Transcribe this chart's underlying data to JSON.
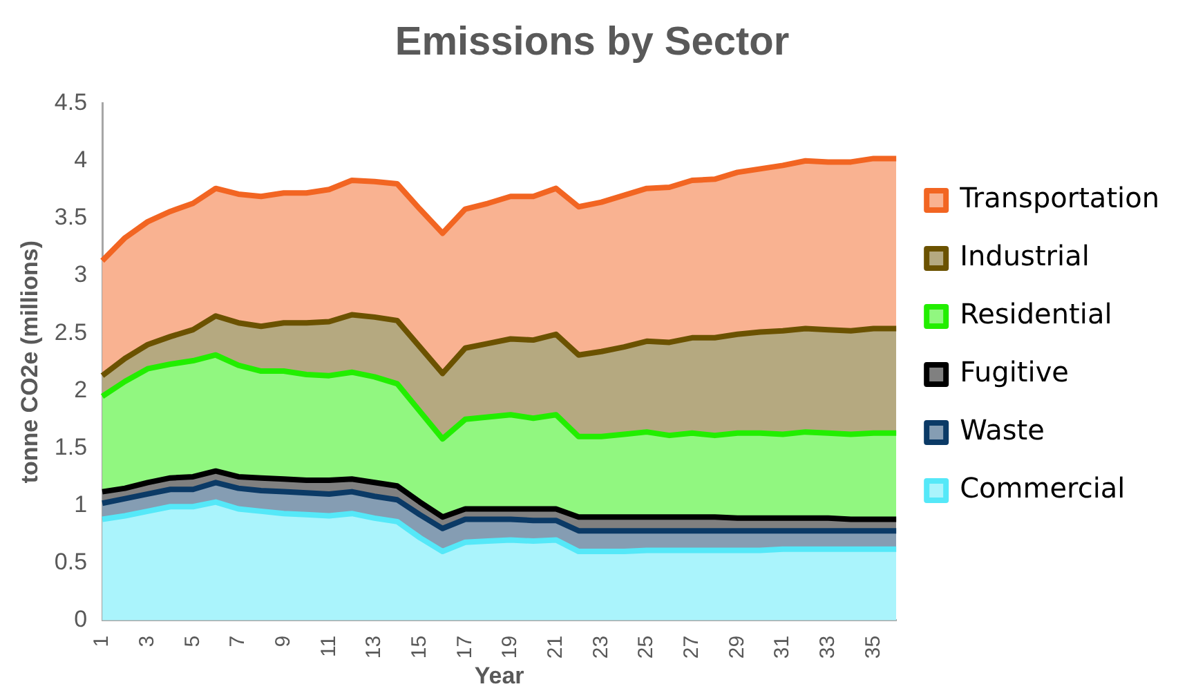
{
  "chart_data": {
    "type": "area",
    "title": "Emissions by Sector",
    "xlabel": "Year",
    "ylabel": "tonne CO2e (millions)",
    "categories": [
      "1",
      null,
      "3",
      null,
      "5",
      null,
      "7",
      null,
      "9",
      null,
      "11",
      null,
      "13",
      null,
      "15",
      null,
      "17",
      null,
      "19",
      null,
      "21",
      null,
      "23",
      null,
      "25",
      null,
      "27",
      null,
      "29",
      null,
      "31",
      null,
      "33",
      null,
      "35",
      null
    ],
    "stacked": true,
    "ylim": [
      0,
      4.5
    ],
    "yticks": [
      0,
      0.5,
      1,
      1.5,
      2,
      2.5,
      3,
      3.5,
      4,
      4.5
    ],
    "grid": false,
    "legend": "right",
    "series": [
      {
        "name": "Commercial",
        "color": "#55e8f8",
        "values": [
          0.88,
          0.91,
          0.95,
          0.99,
          0.99,
          1.03,
          0.97,
          0.95,
          0.93,
          0.92,
          0.91,
          0.93,
          0.89,
          0.86,
          0.72,
          0.6,
          0.68,
          0.69,
          0.7,
          0.69,
          0.7,
          0.6,
          0.6,
          0.6,
          0.61,
          0.61,
          0.61,
          0.61,
          0.61,
          0.61,
          0.62,
          0.62,
          0.62,
          0.62,
          0.62,
          0.62
        ]
      },
      {
        "name": "Waste",
        "color": "#0b3a66",
        "values": [
          0.14,
          0.15,
          0.15,
          0.15,
          0.15,
          0.17,
          0.18,
          0.18,
          0.19,
          0.19,
          0.19,
          0.19,
          0.19,
          0.19,
          0.2,
          0.2,
          0.2,
          0.19,
          0.18,
          0.18,
          0.17,
          0.18,
          0.18,
          0.18,
          0.17,
          0.17,
          0.17,
          0.17,
          0.17,
          0.17,
          0.16,
          0.16,
          0.16,
          0.16,
          0.16,
          0.16
        ]
      },
      {
        "name": "Fugitive",
        "color": "#000000",
        "values": [
          0.1,
          0.09,
          0.1,
          0.1,
          0.11,
          0.1,
          0.1,
          0.11,
          0.11,
          0.11,
          0.12,
          0.11,
          0.12,
          0.12,
          0.11,
          0.1,
          0.09,
          0.09,
          0.09,
          0.1,
          0.1,
          0.12,
          0.12,
          0.12,
          0.12,
          0.12,
          0.12,
          0.12,
          0.11,
          0.11,
          0.11,
          0.11,
          0.11,
          0.1,
          0.1,
          0.1
        ]
      },
      {
        "name": "Residential",
        "color": "#22ee00",
        "values": [
          0.83,
          0.93,
          0.99,
          0.99,
          1.01,
          1.01,
          0.97,
          0.93,
          0.94,
          0.92,
          0.91,
          0.93,
          0.92,
          0.89,
          0.79,
          0.68,
          0.78,
          0.8,
          0.82,
          0.79,
          0.82,
          0.7,
          0.7,
          0.72,
          0.74,
          0.71,
          0.73,
          0.71,
          0.74,
          0.74,
          0.73,
          0.75,
          0.74,
          0.74,
          0.75,
          0.75
        ]
      },
      {
        "name": "Industrial",
        "color": "#6b5200",
        "values": [
          0.18,
          0.2,
          0.21,
          0.24,
          0.27,
          0.34,
          0.37,
          0.39,
          0.42,
          0.45,
          0.47,
          0.5,
          0.52,
          0.55,
          0.56,
          0.57,
          0.62,
          0.64,
          0.66,
          0.68,
          0.7,
          0.71,
          0.74,
          0.76,
          0.79,
          0.81,
          0.83,
          0.85,
          0.86,
          0.88,
          0.9,
          0.9,
          0.9,
          0.9,
          0.91,
          0.91
        ]
      },
      {
        "name": "Transportation",
        "color": "#f26522",
        "values": [
          1.0,
          1.05,
          1.07,
          1.09,
          1.1,
          1.11,
          1.12,
          1.13,
          1.13,
          1.13,
          1.15,
          1.17,
          1.18,
          1.19,
          1.2,
          1.22,
          1.21,
          1.22,
          1.24,
          1.25,
          1.27,
          1.29,
          1.3,
          1.32,
          1.33,
          1.35,
          1.37,
          1.38,
          1.41,
          1.42,
          1.44,
          1.46,
          1.46,
          1.47,
          1.48,
          1.48
        ]
      }
    ]
  }
}
